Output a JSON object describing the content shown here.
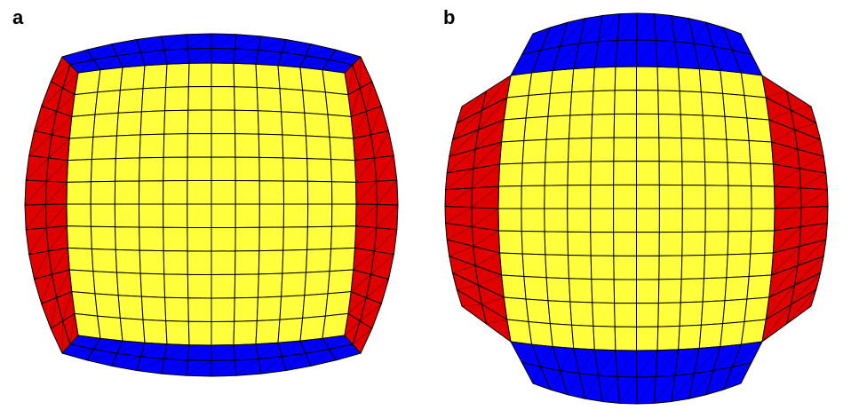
{
  "figure": {
    "panels": [
      {
        "label": "a",
        "variant": "rounded-corners",
        "grid": {
          "columns": 12,
          "rows": 12,
          "side_layers": 2
        }
      },
      {
        "label": "b",
        "variant": "chamfered-corners",
        "grid": {
          "columns": 12,
          "rows": 12,
          "side_layers": 2
        }
      }
    ],
    "colors": {
      "core": "#ffff3c",
      "top_bottom_layer": "#0000ff",
      "side_layer": "#e00000",
      "mesh_line": "#000000",
      "background": "#ffffff"
    }
  }
}
